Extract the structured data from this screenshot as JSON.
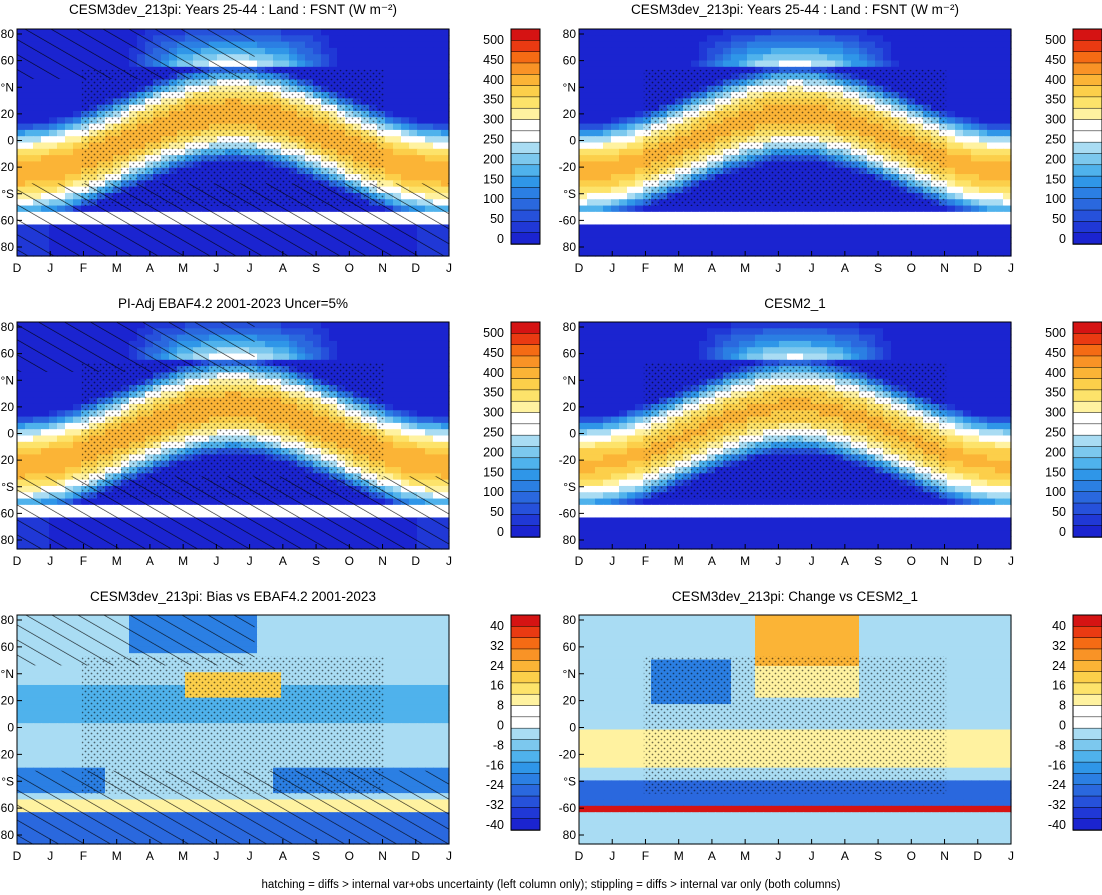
{
  "figure": {
    "footer": "hatching = diffs > internal var+obs uncertainty (left column only); stippling = diffs > internal var only (both columns)"
  },
  "months": [
    "D",
    "J",
    "F",
    "M",
    "A",
    "M",
    "J",
    "J",
    "A",
    "S",
    "O",
    "N",
    "D",
    "J"
  ],
  "y_ticks": [
    "80",
    "60",
    "°N",
    "20",
    "0",
    "-20",
    "°S",
    "-60",
    "80"
  ],
  "colorbars": {
    "absolute": {
      "labels": [
        "500",
        "450",
        "400",
        "350",
        "300",
        "250",
        "200",
        "150",
        "100",
        "50",
        "0"
      ],
      "colors": [
        "#d51313",
        "#ea3a12",
        "#f56b14",
        "#f99326",
        "#fbb436",
        "#fccf4a",
        "#fde36a",
        "#fff2a0",
        "#ffffff",
        "#ffffff",
        "#a9dcf3",
        "#7cc8ee",
        "#4fb2ec",
        "#2f96e8",
        "#2b7fe3",
        "#2a68de",
        "#2651db",
        "#2038d6",
        "#1b24d0"
      ]
    },
    "difference": {
      "labels": [
        "40",
        "32",
        "24",
        "16",
        "8",
        "0",
        "-8",
        "-16",
        "-24",
        "-32",
        "-40"
      ],
      "colors": [
        "#d51313",
        "#ea3a12",
        "#f56b14",
        "#f99326",
        "#fbb436",
        "#fccf4a",
        "#fde36a",
        "#fff2a0",
        "#ffffff",
        "#ffffff",
        "#a9dcf3",
        "#7cc8ee",
        "#4fb2ec",
        "#2f96e8",
        "#2b7fe3",
        "#2a68de",
        "#2651db",
        "#2038d6",
        "#1b24d0"
      ]
    }
  },
  "chart_data": [
    {
      "type": "heatmap",
      "title": "CESM3dev_213pi: Years 25-44 : Land : FSNT (W m⁻²)",
      "x": "month",
      "y": "latitude",
      "colorbar": "absolute",
      "hatching": true,
      "stippling": true
    },
    {
      "type": "heatmap",
      "title": "CESM3dev_213pi: Years 25-44 : Land : FSNT (W m⁻²)",
      "x": "month",
      "y": "latitude",
      "colorbar": "absolute",
      "hatching": false,
      "stippling": true
    },
    {
      "type": "heatmap",
      "title": "PI-Adj EBAF4.2 2001-2023 Uncer=5%",
      "x": "month",
      "y": "latitude",
      "colorbar": "absolute",
      "hatching": true,
      "stippling": true
    },
    {
      "type": "heatmap",
      "title": "CESM2_1",
      "x": "month",
      "y": "latitude",
      "colorbar": "absolute",
      "hatching": false,
      "stippling": true
    },
    {
      "type": "heatmap",
      "title": "CESM3dev_213pi: Bias vs EBAF4.2 2001-2023",
      "x": "month",
      "y": "latitude",
      "colorbar": "difference",
      "hatching": true,
      "stippling": true
    },
    {
      "type": "heatmap",
      "title": "CESM3dev_213pi: Change vs CESM2_1",
      "x": "month",
      "y": "latitude",
      "colorbar": "difference",
      "hatching": false,
      "stippling": true
    }
  ]
}
